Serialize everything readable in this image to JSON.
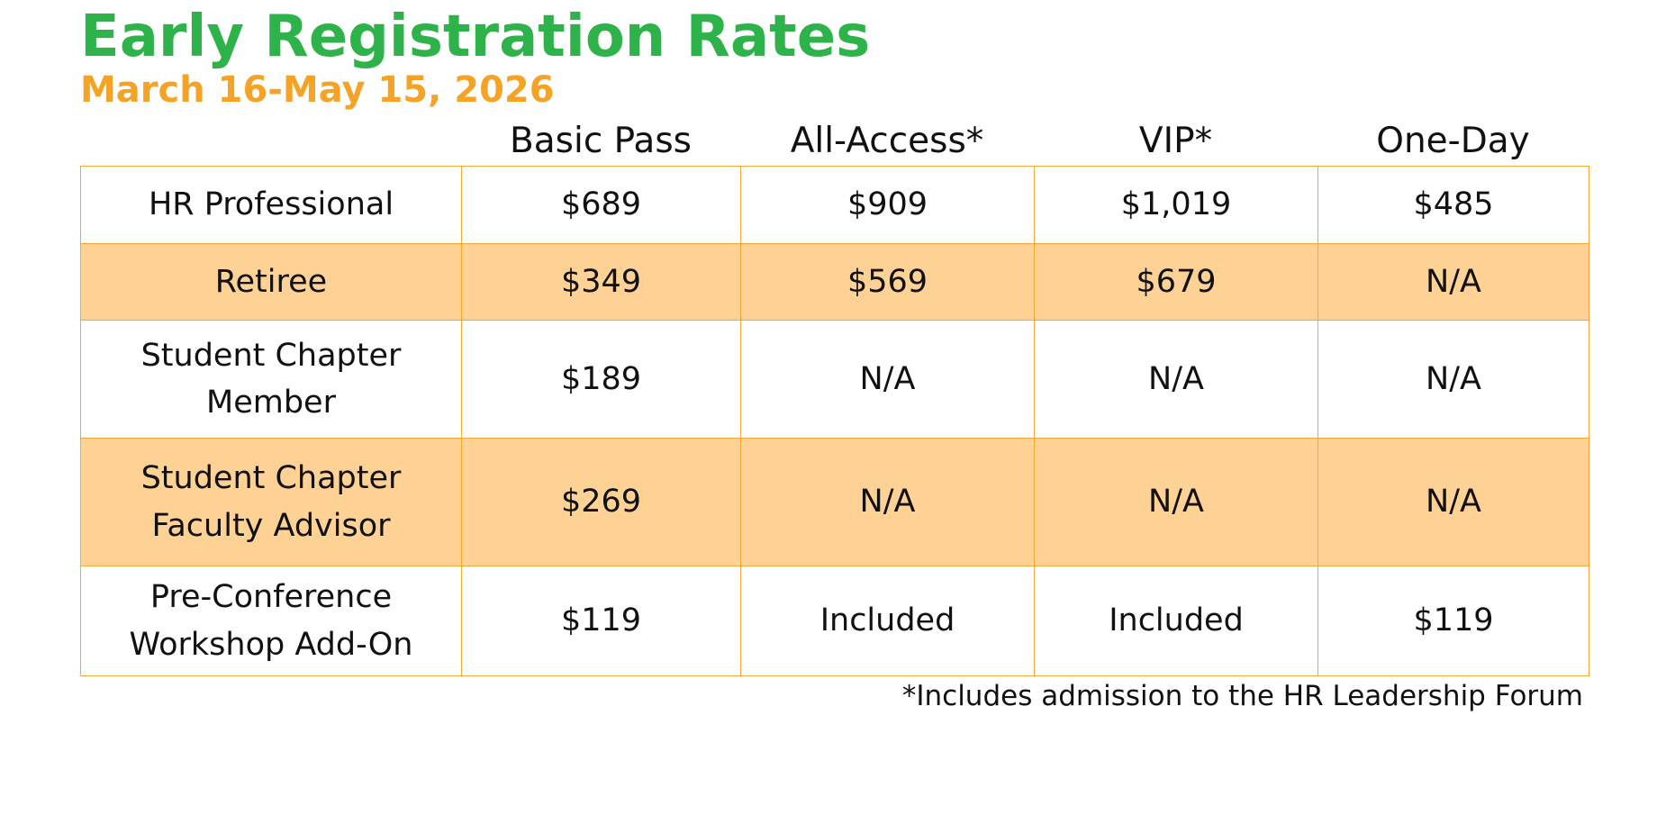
{
  "title": "Early Registration Rates",
  "subtitle": "March 16-May 15, 2026",
  "colors": {
    "title": "#2db34a",
    "subtitle": "#f5a327",
    "border": "#f5a933",
    "alt_row": "#fed194"
  },
  "columns": [
    "Basic Pass",
    "All-Access*",
    "VIP*",
    "One-Day"
  ],
  "rows": [
    {
      "label_lines": [
        "HR Professional"
      ],
      "cells": [
        "$689",
        "$909",
        "$1,019",
        "$485"
      ]
    },
    {
      "label_lines": [
        "Retiree"
      ],
      "cells": [
        "$349",
        "$569",
        "$679",
        "N/A"
      ]
    },
    {
      "label_lines": [
        "Student Chapter",
        "Member"
      ],
      "cells": [
        "$189",
        "N/A",
        "N/A",
        "N/A"
      ]
    },
    {
      "label_lines": [
        "Student Chapter",
        "Faculty Advisor"
      ],
      "cells": [
        "$269",
        "N/A",
        "N/A",
        "N/A"
      ]
    },
    {
      "label_lines": [
        "Pre-Conference",
        "Workshop Add-On"
      ],
      "cells": [
        "$119",
        "Included",
        "Included",
        "$119"
      ]
    }
  ],
  "footnote": "*Includes admission to the HR Leadership Forum"
}
